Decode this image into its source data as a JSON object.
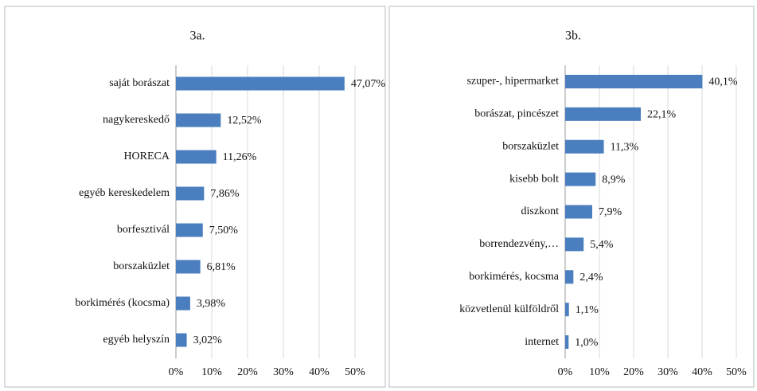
{
  "chart_data": [
    {
      "type": "bar",
      "orientation": "horizontal",
      "title": "3a.",
      "categories": [
        "saját borászat",
        "nagykereskedő",
        "HORECA",
        "egyéb kereskedelem",
        "borfesztivál",
        "borszaküzlet",
        "borkimérés (kocsma)",
        "egyéb helyszín"
      ],
      "values": [
        47.07,
        12.52,
        11.26,
        7.86,
        7.5,
        6.81,
        3.98,
        3.02
      ],
      "value_labels": [
        "47,07%",
        "12,52%",
        "11,26%",
        "7,86%",
        "7,50%",
        "6,81%",
        "3,98%",
        "3,02%"
      ],
      "color": "#4a7ebf",
      "xlim": [
        0,
        50
      ],
      "xticks": [
        {
          "value": 0,
          "label": "0%"
        },
        {
          "value": 10,
          "label": "10%"
        },
        {
          "value": 20,
          "label": "20%"
        },
        {
          "value": 30,
          "label": "30%"
        },
        {
          "value": 40,
          "label": "40%"
        },
        {
          "value": 50,
          "label": "50%"
        }
      ],
      "grid": true
    },
    {
      "type": "bar",
      "orientation": "horizontal",
      "title": "3b.",
      "categories": [
        "szuper-, hipermarket",
        "borászat, pincészet",
        "borszaküzlet",
        "kisebb bolt",
        "diszkont",
        "borrendezvény,…",
        "borkimérés, kocsma",
        "közvetlenül külföldről",
        "internet"
      ],
      "values": [
        40.1,
        22.1,
        11.3,
        8.9,
        7.9,
        5.4,
        2.4,
        1.1,
        1.0
      ],
      "value_labels": [
        "40,1%",
        "22,1%",
        "11,3%",
        "8,9%",
        "7,9%",
        "5,4%",
        "2,4%",
        "1,1%",
        "1,0%"
      ],
      "color": "#4a7ebf",
      "xlim": [
        0,
        50
      ],
      "xticks": [
        {
          "value": 0,
          "label": "0%"
        },
        {
          "value": 10,
          "label": "10%"
        },
        {
          "value": 20,
          "label": "20%"
        },
        {
          "value": 30,
          "label": "30%"
        },
        {
          "value": 40,
          "label": "40%"
        },
        {
          "value": 50,
          "label": "50%"
        }
      ],
      "grid": true
    }
  ]
}
